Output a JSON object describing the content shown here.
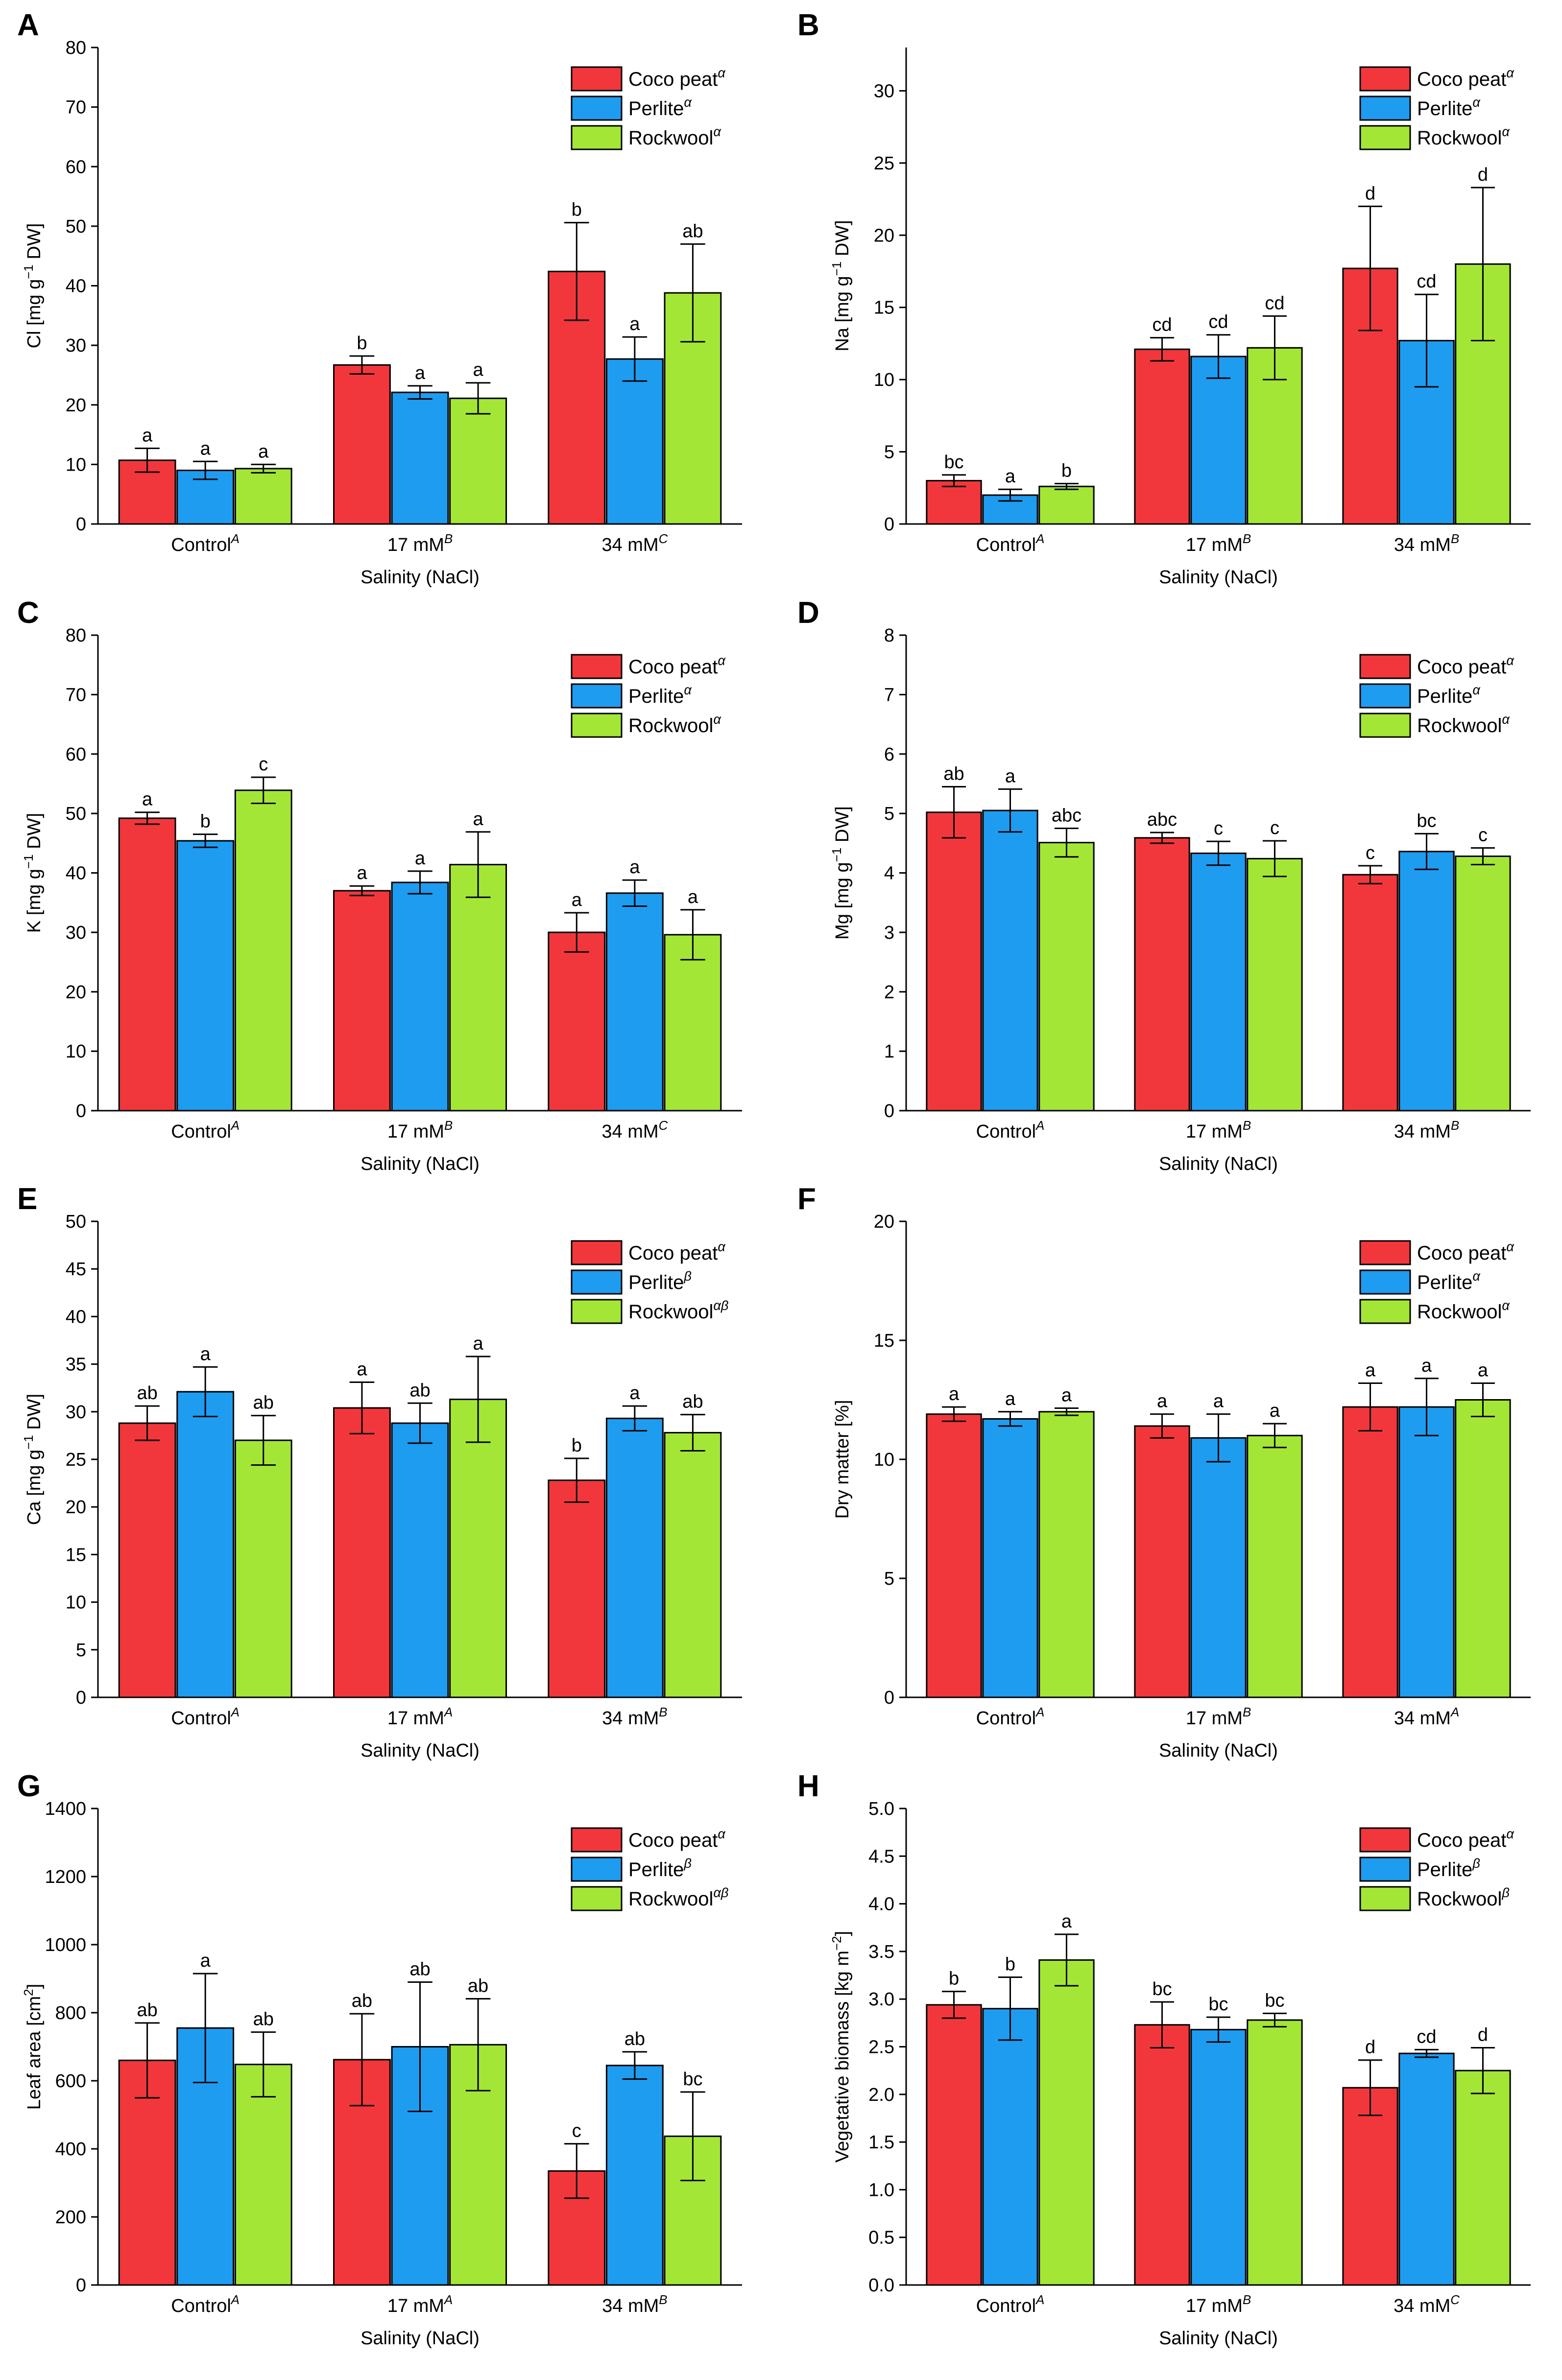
{
  "figure": {
    "colors": {
      "coco": "#f2373c",
      "perlite": "#1e9cf0",
      "rockwool": "#a4e636"
    },
    "chart_data": [
      {
        "panel": "A",
        "type": "bar",
        "ylabel_main": "Cl [mg g",
        "ylabel_sup": "−1",
        "ylabel_tail": " DW]",
        "xlabel": "Salinity (NaCl)",
        "categories": [
          [
            "Control",
            "A"
          ],
          [
            "17 mM",
            "B"
          ],
          [
            "34 mM",
            "C"
          ]
        ],
        "ylim": [
          0,
          80
        ],
        "yticks": [
          0,
          10,
          20,
          30,
          40,
          50,
          60,
          70,
          80
        ],
        "legend": [
          [
            "Coco peat",
            "α"
          ],
          [
            "Perlite",
            "α"
          ],
          [
            "Rockwool",
            "α"
          ]
        ],
        "series": [
          {
            "name": "Coco peat",
            "values": [
              10.7,
              26.7,
              42.4
            ],
            "errors": [
              2.0,
              1.5,
              8.2
            ],
            "letters": [
              "a",
              "b",
              "b"
            ]
          },
          {
            "name": "Perlite",
            "values": [
              9.0,
              22.1,
              27.7
            ],
            "errors": [
              1.5,
              1.1,
              3.7
            ],
            "letters": [
              "a",
              "a",
              "a"
            ]
          },
          {
            "name": "Rockwool",
            "values": [
              9.3,
              21.1,
              38.8
            ],
            "errors": [
              0.7,
              2.6,
              8.2
            ],
            "letters": [
              "a",
              "a",
              "ab"
            ]
          }
        ]
      },
      {
        "panel": "B",
        "type": "bar",
        "ylabel_main": "Na [mg g",
        "ylabel_sup": "−1",
        "ylabel_tail": " DW]",
        "xlabel": "Salinity (NaCl)",
        "categories": [
          [
            "Control",
            "A"
          ],
          [
            "17 mM",
            "B"
          ],
          [
            "34 mM",
            "B"
          ]
        ],
        "ylim": [
          0,
          33
        ],
        "yticks": [
          0,
          5,
          10,
          15,
          20,
          25,
          30
        ],
        "legend": [
          [
            "Coco peat",
            "α"
          ],
          [
            "Perlite",
            "α"
          ],
          [
            "Rockwool",
            "α"
          ]
        ],
        "series": [
          {
            "name": "Coco peat",
            "values": [
              3.0,
              12.1,
              17.7
            ],
            "errors": [
              0.4,
              0.8,
              4.3
            ],
            "letters": [
              "bc",
              "cd",
              "d"
            ]
          },
          {
            "name": "Perlite",
            "values": [
              2.0,
              11.6,
              12.7
            ],
            "errors": [
              0.4,
              1.5,
              3.2
            ],
            "letters": [
              "a",
              "cd",
              "cd"
            ]
          },
          {
            "name": "Rockwool",
            "values": [
              2.6,
              12.2,
              18.0
            ],
            "errors": [
              0.2,
              2.2,
              5.3
            ],
            "letters": [
              "b",
              "cd",
              "d"
            ]
          }
        ]
      },
      {
        "panel": "C",
        "type": "bar",
        "ylabel_main": "K [mg g",
        "ylabel_sup": "−1",
        "ylabel_tail": " DW]",
        "xlabel": "Salinity (NaCl)",
        "categories": [
          [
            "Control",
            "A"
          ],
          [
            "17 mM",
            "B"
          ],
          [
            "34 mM",
            "C"
          ]
        ],
        "ylim": [
          0,
          80
        ],
        "yticks": [
          0,
          10,
          20,
          30,
          40,
          50,
          60,
          70,
          80
        ],
        "legend": [
          [
            "Coco peat",
            "α"
          ],
          [
            "Perlite",
            "α"
          ],
          [
            "Rockwool",
            "α"
          ]
        ],
        "series": [
          {
            "name": "Coco peat",
            "values": [
              49.2,
              37.0,
              30.0
            ],
            "errors": [
              1.0,
              0.8,
              3.3
            ],
            "letters": [
              "a",
              "a",
              "a"
            ]
          },
          {
            "name": "Perlite",
            "values": [
              45.4,
              38.4,
              36.6
            ],
            "errors": [
              1.1,
              1.9,
              2.2
            ],
            "letters": [
              "b",
              "a",
              "a"
            ]
          },
          {
            "name": "Rockwool",
            "values": [
              53.9,
              41.4,
              29.6
            ],
            "errors": [
              2.2,
              5.5,
              4.2
            ],
            "letters": [
              "c",
              "a",
              "a"
            ]
          }
        ]
      },
      {
        "panel": "D",
        "type": "bar",
        "ylabel_main": "Mg [mg g",
        "ylabel_sup": "−1",
        "ylabel_tail": " DW]",
        "xlabel": "Salinity (NaCl)",
        "categories": [
          [
            "Control",
            "A"
          ],
          [
            "17 mM",
            "B"
          ],
          [
            "34 mM",
            "B"
          ]
        ],
        "ylim": [
          0,
          8
        ],
        "yticks": [
          0,
          1,
          2,
          3,
          4,
          5,
          6,
          7,
          8
        ],
        "legend": [
          [
            "Coco peat",
            "α"
          ],
          [
            "Perlite",
            "α"
          ],
          [
            "Rockwool",
            "α"
          ]
        ],
        "series": [
          {
            "name": "Coco peat",
            "values": [
              5.02,
              4.59,
              3.97
            ],
            "errors": [
              0.43,
              0.09,
              0.15
            ],
            "letters": [
              "ab",
              "abc",
              "c"
            ]
          },
          {
            "name": "Perlite",
            "values": [
              5.05,
              4.33,
              4.36
            ],
            "errors": [
              0.36,
              0.2,
              0.3
            ],
            "letters": [
              "a",
              "c",
              "bc"
            ]
          },
          {
            "name": "Rockwool",
            "values": [
              4.51,
              4.24,
              4.28
            ],
            "errors": [
              0.24,
              0.3,
              0.14
            ],
            "letters": [
              "abc",
              "c",
              "c"
            ]
          }
        ]
      },
      {
        "panel": "E",
        "type": "bar",
        "ylabel_main": "Ca [mg g",
        "ylabel_sup": "−1",
        "ylabel_tail": " DW]",
        "xlabel": "Salinity (NaCl)",
        "categories": [
          [
            "Control",
            "A"
          ],
          [
            "17 mM",
            "A"
          ],
          [
            "34 mM",
            "B"
          ]
        ],
        "ylim": [
          0,
          50
        ],
        "yticks": [
          0,
          5,
          10,
          15,
          20,
          25,
          30,
          35,
          40,
          45,
          50
        ],
        "legend": [
          [
            "Coco peat",
            "α"
          ],
          [
            "Perlite",
            "β"
          ],
          [
            "Rockwool",
            "αβ"
          ]
        ],
        "series": [
          {
            "name": "Coco peat",
            "values": [
              28.8,
              30.4,
              22.8
            ],
            "errors": [
              1.8,
              2.7,
              2.3
            ],
            "letters": [
              "ab",
              "a",
              "b"
            ]
          },
          {
            "name": "Perlite",
            "values": [
              32.1,
              28.8,
              29.3
            ],
            "errors": [
              2.6,
              2.1,
              1.3
            ],
            "letters": [
              "a",
              "ab",
              "a"
            ]
          },
          {
            "name": "Rockwool",
            "values": [
              27.0,
              31.3,
              27.8
            ],
            "errors": [
              2.6,
              4.5,
              1.9
            ],
            "letters": [
              "ab",
              "a",
              "ab"
            ]
          }
        ]
      },
      {
        "panel": "F",
        "type": "bar",
        "ylabel_main": "Dry matter [%]",
        "ylabel_sup": "",
        "ylabel_tail": "",
        "xlabel": "Salinity (NaCl)",
        "categories": [
          [
            "Control",
            "A"
          ],
          [
            "17 mM",
            "B"
          ],
          [
            "34 mM",
            "A"
          ]
        ],
        "ylim": [
          0,
          20
        ],
        "yticks": [
          0,
          5,
          10,
          15,
          20
        ],
        "legend": [
          [
            "Coco peat",
            "α"
          ],
          [
            "Perlite",
            "α"
          ],
          [
            "Rockwool",
            "α"
          ]
        ],
        "series": [
          {
            "name": "Coco peat",
            "values": [
              11.9,
              11.4,
              12.2
            ],
            "errors": [
              0.3,
              0.5,
              1.0
            ],
            "letters": [
              "a",
              "a",
              "a"
            ]
          },
          {
            "name": "Perlite",
            "values": [
              11.7,
              10.9,
              12.2
            ],
            "errors": [
              0.3,
              1.0,
              1.2
            ],
            "letters": [
              "a",
              "a",
              "a"
            ]
          },
          {
            "name": "Rockwool",
            "values": [
              12.0,
              11.0,
              12.5
            ],
            "errors": [
              0.15,
              0.5,
              0.7
            ],
            "letters": [
              "a",
              "a",
              "a"
            ]
          }
        ]
      },
      {
        "panel": "G",
        "type": "bar",
        "ylabel_main": "Leaf area [cm",
        "ylabel_sup": "2",
        "ylabel_tail": "]",
        "xlabel": "Salinity (NaCl)",
        "categories": [
          [
            "Control",
            "A"
          ],
          [
            "17 mM",
            "A"
          ],
          [
            "34 mM",
            "B"
          ]
        ],
        "ylim": [
          0,
          1400
        ],
        "yticks": [
          0,
          200,
          400,
          600,
          800,
          1000,
          1200,
          1400
        ],
        "legend": [
          [
            "Coco peat",
            "α"
          ],
          [
            "Perlite",
            "β"
          ],
          [
            "Rockwool",
            "αβ"
          ]
        ],
        "series": [
          {
            "name": "Coco peat",
            "values": [
              660,
              662,
              335
            ],
            "errors": [
              110,
              135,
              80
            ],
            "letters": [
              "ab",
              "ab",
              "c"
            ]
          },
          {
            "name": "Perlite",
            "values": [
              755,
              700,
              645
            ],
            "errors": [
              160,
              190,
              40
            ],
            "letters": [
              "a",
              "ab",
              "ab"
            ]
          },
          {
            "name": "Rockwool",
            "values": [
              648,
              706,
              437
            ],
            "errors": [
              95,
              135,
              130
            ],
            "letters": [
              "ab",
              "ab",
              "bc"
            ]
          }
        ]
      },
      {
        "panel": "H",
        "type": "bar",
        "ylabel_main": "Vegetative biomass [kg m",
        "ylabel_sup": "−2",
        "ylabel_tail": "]",
        "xlabel": "Salinity (NaCl)",
        "categories": [
          [
            "Control",
            "A"
          ],
          [
            "17 mM",
            "B"
          ],
          [
            "34 mM",
            "C"
          ]
        ],
        "ylim": [
          0,
          5
        ],
        "yticks": [
          "0.0",
          "0.5",
          "1.0",
          "1.5",
          "2.0",
          "2.5",
          "3.0",
          "3.5",
          "4.0",
          "4.5",
          "5.0"
        ],
        "legend": [
          [
            "Coco peat",
            "α"
          ],
          [
            "Perlite",
            "β"
          ],
          [
            "Rockwool",
            "β"
          ]
        ],
        "series": [
          {
            "name": "Coco peat",
            "values": [
              2.94,
              2.73,
              2.07
            ],
            "errors": [
              0.14,
              0.24,
              0.29
            ],
            "letters": [
              "b",
              "bc",
              "d"
            ]
          },
          {
            "name": "Perlite",
            "values": [
              2.9,
              2.68,
              2.43
            ],
            "errors": [
              0.33,
              0.13,
              0.04
            ],
            "letters": [
              "b",
              "bc",
              "cd"
            ]
          },
          {
            "name": "Rockwool",
            "values": [
              3.41,
              2.78,
              2.25
            ],
            "errors": [
              0.27,
              0.07,
              0.24
            ],
            "letters": [
              "a",
              "bc",
              "d"
            ]
          }
        ]
      }
    ]
  }
}
